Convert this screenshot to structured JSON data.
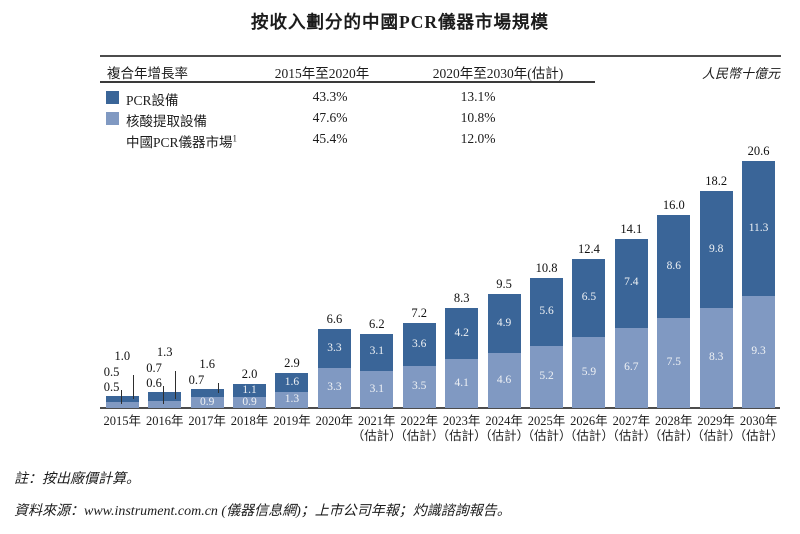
{
  "title": "按收入劃分的中國PCR儀器市場規模",
  "unit_label": "人民幣十億元",
  "legend": {
    "col_header_left": "複合年增長率",
    "col_header_mid": "2015年至2020年",
    "col_header_right": "2020年至2030年(估計)",
    "rows": [
      {
        "label": "PCR設備",
        "color": "#3a6598",
        "cagr_2015_2020": "43.3%",
        "cagr_2020_2030": "13.1%"
      },
      {
        "label": "核酸提取設備",
        "color": "#8099c2",
        "cagr_2015_2020": "47.6%",
        "cagr_2020_2030": "10.8%"
      },
      {
        "label": "中國PCR儀器市場",
        "footnote_marker": "1",
        "cagr_2015_2020": "45.4%",
        "cagr_2020_2030": "12.0%"
      }
    ]
  },
  "chart_data": {
    "type": "bar",
    "stacked": true,
    "title": "按收入劃分的中國PCR儀器市場規模",
    "ylabel": "人民幣十億元",
    "ylim": [
      0,
      22
    ],
    "grid": false,
    "legend_position": "top-left-table",
    "categories": [
      "2015年",
      "2016年",
      "2017年",
      "2018年",
      "2019年",
      "2020年",
      "2021年",
      "2022年",
      "2023年",
      "2024年",
      "2025年",
      "2026年",
      "2027年",
      "2028年",
      "2029年",
      "2030年"
    ],
    "estimate_label": "（估計）",
    "estimate_from_index": 6,
    "series": [
      {
        "name": "PCR設備",
        "position": "top",
        "color": "#3a6598",
        "values": [
          0.5,
          0.7,
          0.7,
          1.1,
          1.6,
          3.3,
          3.1,
          3.6,
          4.2,
          4.9,
          5.6,
          6.5,
          7.4,
          8.6,
          9.8,
          11.3
        ]
      },
      {
        "name": "核酸提取設備",
        "position": "bottom",
        "color": "#8099c2",
        "values": [
          0.5,
          0.6,
          0.9,
          0.9,
          1.3,
          3.3,
          3.1,
          3.5,
          4.1,
          4.6,
          5.2,
          5.9,
          6.7,
          7.5,
          8.3,
          9.3
        ]
      }
    ],
    "totals": [
      1.0,
      1.3,
      1.6,
      2.0,
      2.9,
      6.6,
      6.2,
      7.2,
      8.3,
      9.5,
      10.8,
      12.4,
      14.1,
      16.0,
      18.2,
      20.6
    ]
  },
  "footnotes": {
    "note": "註：按出廠價計算。",
    "source": "資料來源：www.instrument.com.cn (儀器信息網)；上市公司年報；灼識諮詢報告。"
  }
}
